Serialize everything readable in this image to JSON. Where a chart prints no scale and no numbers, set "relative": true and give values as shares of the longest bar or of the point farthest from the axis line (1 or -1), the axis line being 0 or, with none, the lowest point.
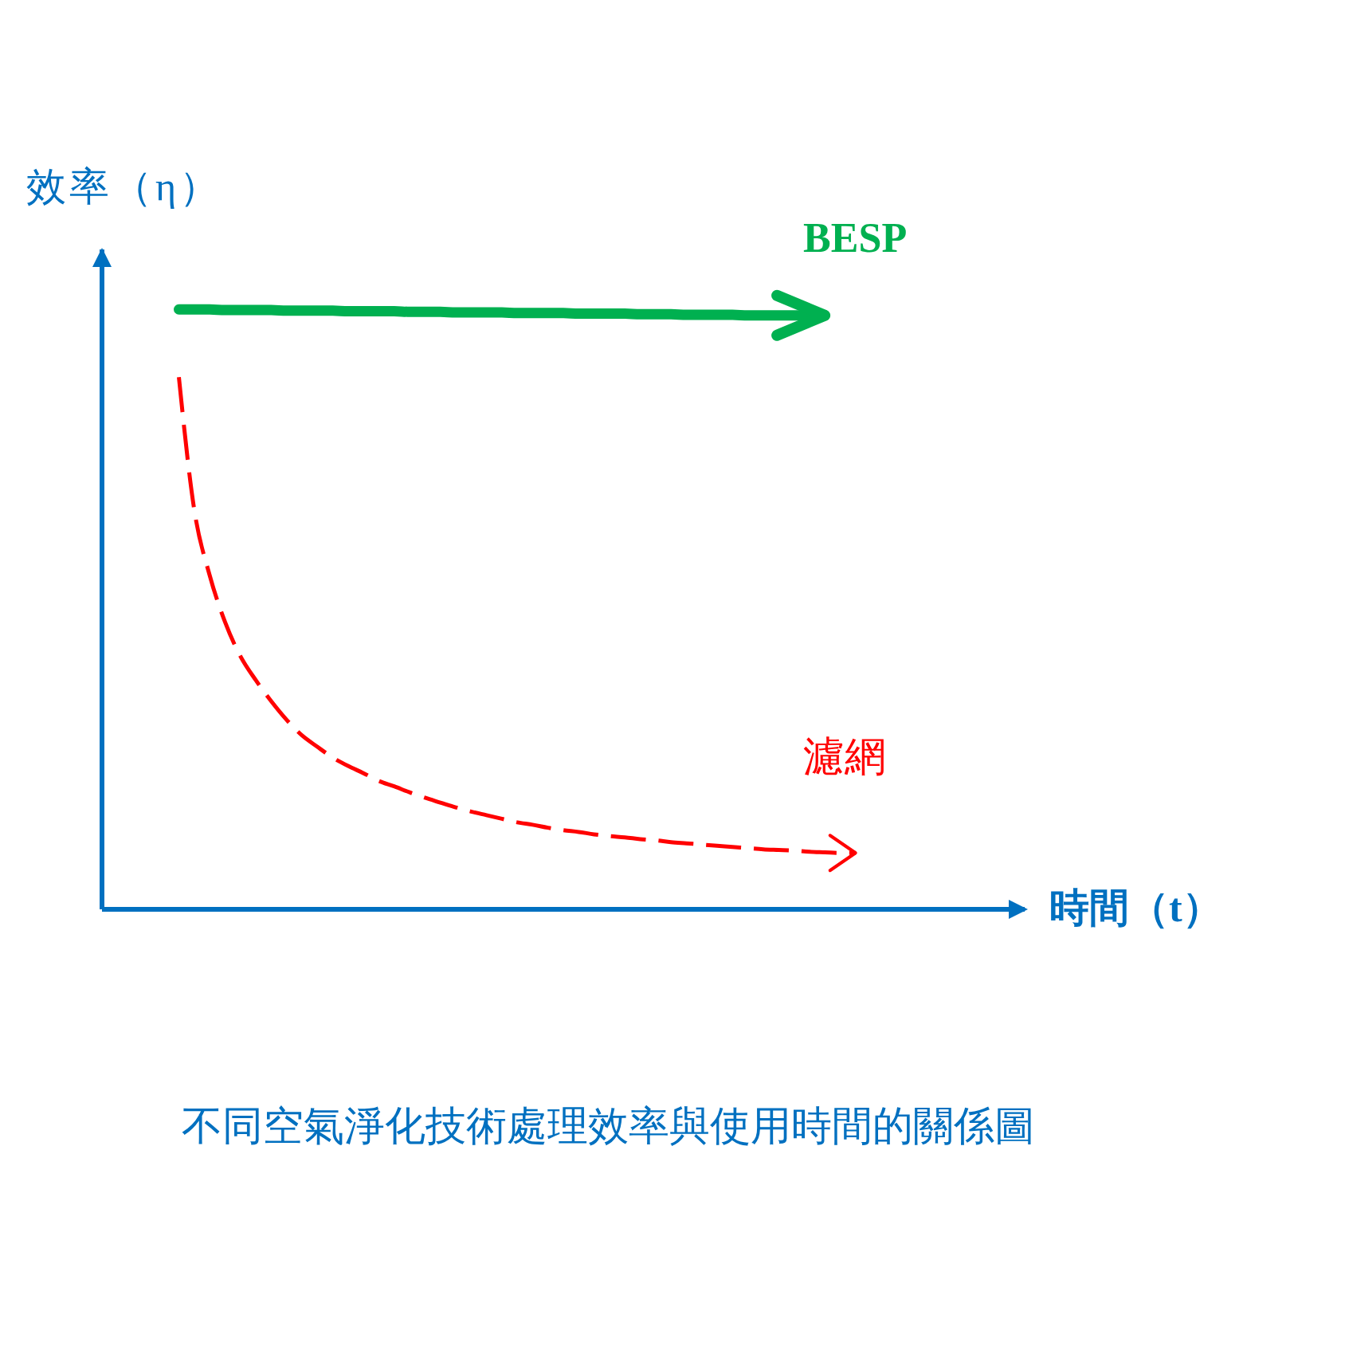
{
  "chart_data": {
    "type": "line",
    "title": "不同空氣淨化技術處理效率與使用時間的關係圖",
    "xlabel": "時間（t）",
    "ylabel": "效率（η）",
    "relative": true,
    "marker": "none",
    "grid": false,
    "legend": false,
    "categories": [
      null,
      null,
      null,
      null,
      null,
      null,
      null,
      null,
      null,
      null,
      null,
      null,
      null,
      null,
      null,
      null,
      null,
      null,
      null,
      null,
      null,
      null,
      null,
      null,
      null,
      null,
      null,
      null,
      null,
      null,
      null,
      null,
      null,
      null,
      null,
      null,
      null,
      null,
      null,
      null,
      null,
      null,
      null,
      null,
      null,
      null,
      null,
      null,
      null,
      null,
      null,
      null,
      null,
      null,
      null,
      null,
      null,
      null,
      null,
      null,
      null
    ],
    "series": [
      {
        "name": "BESP",
        "color": "#00b050",
        "line_style": "solid",
        "values": [
          null,
          null,
          null,
          null,
          null,
          1,
          1,
          1,
          0.999,
          0.999,
          0.999,
          0.999,
          0.998,
          0.998,
          0.998,
          0.998,
          0.997,
          0.997,
          0.997,
          0.997,
          0.996,
          0.996,
          0.996,
          0.995,
          0.995,
          0.995,
          0.995,
          0.994,
          0.994,
          0.994,
          0.994,
          0.993,
          0.993,
          0.993,
          0.993,
          0.992,
          0.992,
          0.992,
          0.991,
          0.991,
          0.991,
          0.991,
          0.99,
          0.99,
          0.99,
          0.99,
          0.99,
          0.99,
          null,
          null,
          null,
          null,
          null,
          null,
          null,
          null,
          null,
          null,
          null,
          null,
          null
        ]
      },
      {
        "name": "濾網",
        "color": "#ff0000",
        "line_style": "dashed",
        "values": [
          null,
          null,
          null,
          null,
          null,
          0.887,
          0.666,
          0.557,
          0.479,
          0.422,
          0.382,
          0.347,
          0.316,
          0.29,
          0.271,
          0.253,
          0.239,
          0.227,
          0.214,
          0.205,
          0.195,
          0.186,
          0.178,
          0.17,
          0.163,
          0.157,
          0.151,
          0.145,
          0.141,
          0.136,
          0.132,
          0.129,
          0.125,
          0.122,
          0.12,
          0.117,
          0.115,
          0.112,
          0.11,
          0.108,
          0.106,
          0.104,
          0.102,
          0.1,
          0.099,
          0.098,
          0.096,
          0.095,
          0.094,
          0.094,
          null,
          null,
          null,
          null,
          null,
          null,
          null,
          null,
          null,
          null,
          null
        ]
      }
    ]
  }
}
